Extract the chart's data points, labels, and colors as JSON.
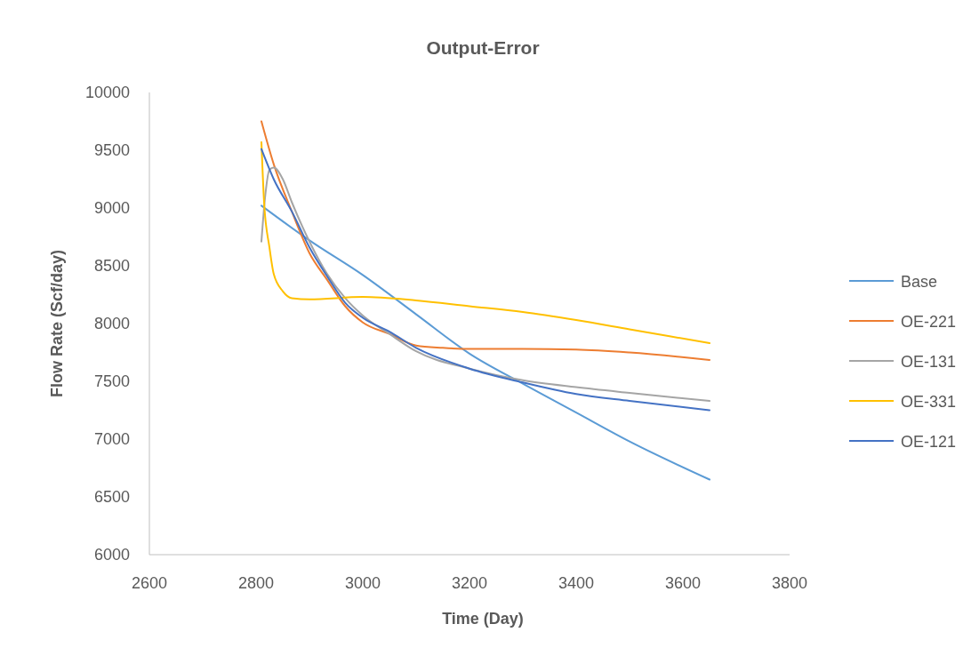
{
  "chart_data": {
    "type": "line",
    "title": "Output-Error",
    "xlabel": "Time (Day)",
    "ylabel": "Flow Rate (Scf/day)",
    "xlim": [
      2600,
      3800
    ],
    "xticks": [
      2600,
      2800,
      3000,
      3200,
      3400,
      3600,
      3800
    ],
    "ylim": [
      6000,
      10000
    ],
    "yticks": [
      6000,
      6500,
      7000,
      7500,
      8000,
      8500,
      9000,
      9500,
      10000
    ],
    "grid": false,
    "legend": "right",
    "marker": "none",
    "line_style": "solid",
    "series": [
      {
        "name": "Base",
        "color": "#5b9bd5",
        "x": [
          2810,
          2900,
          3000,
          3100,
          3200,
          3300,
          3400,
          3500,
          3650
        ],
        "values": [
          9020,
          8720,
          8420,
          8080,
          7740,
          7480,
          7230,
          6980,
          6650
        ]
      },
      {
        "name": "OE-221",
        "color": "#ed7d31",
        "x": [
          2810,
          2833,
          2867,
          2900,
          2933,
          2967,
          3000,
          3050,
          3100,
          3150,
          3200,
          3300,
          3400,
          3500,
          3650
        ],
        "values": [
          9750,
          9380,
          8970,
          8610,
          8380,
          8150,
          8010,
          7910,
          7810,
          7790,
          7780,
          7780,
          7775,
          7750,
          7685
        ]
      },
      {
        "name": "OE-131",
        "color": "#a5a5a5",
        "x": [
          2810,
          2817,
          2825,
          2833,
          2850,
          2867,
          2900,
          2933,
          2967,
          3000,
          3050,
          3100,
          3200,
          3300,
          3400,
          3500,
          3650
        ],
        "values": [
          8710,
          9100,
          9330,
          9350,
          9250,
          9050,
          8710,
          8430,
          8220,
          8070,
          7910,
          7760,
          7610,
          7510,
          7450,
          7400,
          7330
        ]
      },
      {
        "name": "OE-331",
        "color": "#ffc000",
        "x": [
          2810,
          2815,
          2825,
          2833,
          2850,
          2867,
          2900,
          3000,
          3100,
          3200,
          3300,
          3400,
          3500,
          3650
        ],
        "values": [
          9570,
          9050,
          8660,
          8430,
          8280,
          8220,
          8210,
          8230,
          8200,
          8150,
          8100,
          8030,
          7950,
          7830
        ]
      },
      {
        "name": "OE-121",
        "color": "#4472c4",
        "x": [
          2810,
          2833,
          2867,
          2900,
          2933,
          2967,
          3000,
          3050,
          3100,
          3200,
          3300,
          3400,
          3500,
          3650
        ],
        "values": [
          9510,
          9250,
          8970,
          8660,
          8410,
          8180,
          8050,
          7930,
          7790,
          7610,
          7490,
          7390,
          7330,
          7250
        ]
      }
    ]
  }
}
